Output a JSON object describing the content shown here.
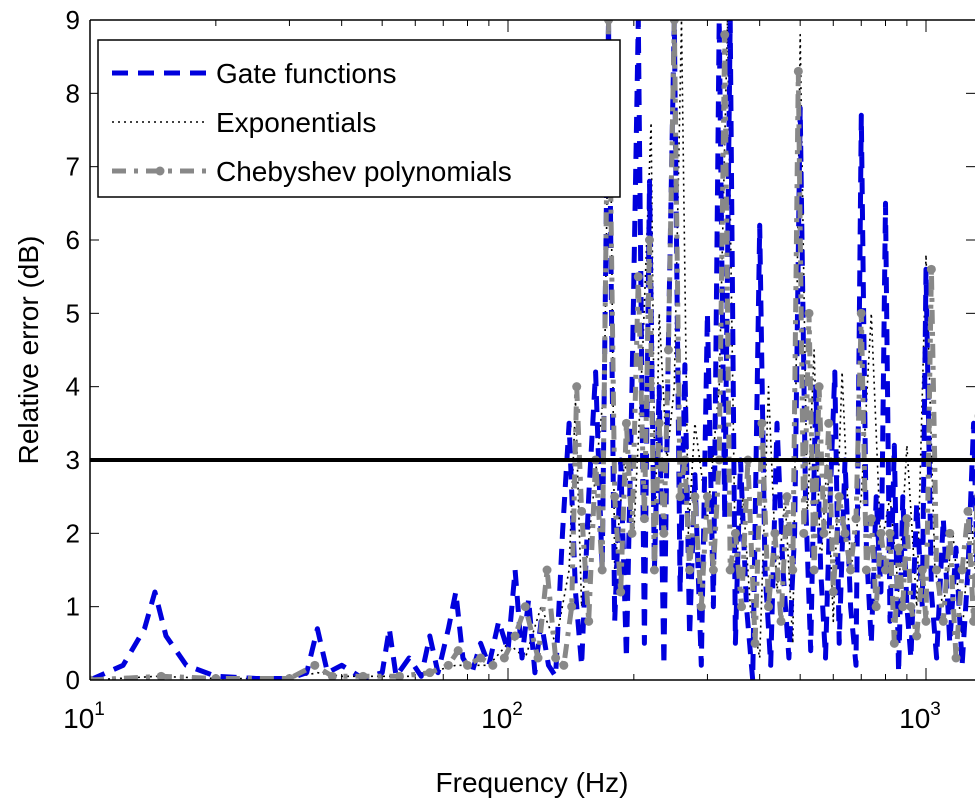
{
  "chart_data": {
    "type": "line",
    "title": "",
    "xlabel": "Frequency (Hz)",
    "ylabel": "Relative error (dB)",
    "xscale": "log",
    "xlim": [
      10,
      1500
    ],
    "ylim": [
      0,
      9
    ],
    "x_ticks": [
      {
        "value": 10,
        "base": "10",
        "exp": "1"
      },
      {
        "value": 100,
        "base": "10",
        "exp": "2"
      },
      {
        "value": 1000,
        "base": "10",
        "exp": "3"
      }
    ],
    "y_ticks": [
      "0",
      "1",
      "2",
      "3",
      "4",
      "5",
      "6",
      "7",
      "8",
      "9"
    ],
    "threshold": 3,
    "legend": {
      "position": "top-left",
      "entries": [
        "Gate functions",
        "Exponentials",
        "Chebyshev polynomials"
      ]
    },
    "series": [
      {
        "name": "Gate functions",
        "color": "#0000dd",
        "style": "dashed",
        "x": [
          10,
          12,
          13.5,
          14.3,
          15.2,
          17,
          20,
          25,
          30,
          33,
          35,
          37,
          40,
          45,
          50,
          52,
          54,
          58,
          62,
          65,
          68,
          72,
          75,
          78,
          82,
          86,
          90,
          95,
          100,
          104,
          108,
          112,
          116,
          120,
          125,
          130,
          135,
          140,
          145,
          150,
          156,
          162,
          168,
          174,
          180,
          186,
          192,
          198,
          205,
          212,
          218,
          224,
          230,
          236,
          242,
          250,
          258,
          265,
          272,
          280,
          290,
          300,
          310,
          320,
          330,
          340,
          350,
          360,
          372,
          385,
          400,
          412,
          425,
          440,
          455,
          470,
          485,
          500,
          515,
          530,
          545,
          560,
          575,
          590,
          605,
          620,
          640,
          660,
          680,
          700,
          720,
          740,
          760,
          780,
          800,
          820,
          840,
          860,
          880,
          900,
          920,
          950,
          980,
          1000,
          1030,
          1060,
          1100,
          1140,
          1180,
          1220,
          1260,
          1300,
          1340,
          1380,
          1420,
          1460,
          1500
        ],
        "y": [
          0.0,
          0.2,
          0.7,
          1.2,
          0.6,
          0.2,
          0.05,
          0.02,
          0.02,
          0.1,
          0.7,
          0.1,
          0.2,
          0.02,
          0.1,
          0.7,
          0.05,
          0.3,
          0.05,
          0.6,
          0.1,
          0.7,
          1.2,
          0.3,
          0.1,
          0.5,
          0.2,
          0.8,
          0.4,
          1.5,
          0.3,
          1.1,
          0.1,
          0.8,
          0.2,
          0.05,
          2.0,
          3.5,
          1.2,
          0.2,
          2.5,
          4.2,
          1.5,
          9.0,
          0.8,
          3.0,
          0.3,
          4.0,
          9.0,
          0.5,
          6.8,
          1.5,
          4.0,
          0.2,
          4.6,
          9.0,
          1.2,
          4.3,
          0.6,
          2.8,
          0.2,
          5.0,
          1.0,
          9.0,
          2.2,
          9.0,
          0.5,
          3.0,
          1.0,
          0.0,
          6.2,
          1.5,
          0.2,
          3.5,
          1.5,
          0.3,
          2.0,
          7.8,
          2.5,
          0.4,
          4.0,
          1.5,
          0.3,
          2.5,
          4.2,
          0.5,
          3.0,
          1.0,
          0.2,
          7.7,
          1.8,
          0.5,
          2.5,
          1.2,
          6.5,
          0.8,
          3.2,
          0.1,
          2.5,
          1.0,
          0.3,
          2.4,
          1.0,
          5.6,
          1.2,
          0.3,
          2.2,
          0.5,
          1.8,
          0.2,
          1.5,
          3.5,
          0.4,
          2.0,
          0.8,
          1.3,
          2.0
        ]
      },
      {
        "name": "Exponentials",
        "color": "#000000",
        "style": "dotted",
        "x": [
          10,
          14.5,
          20,
          30,
          35,
          40,
          50,
          60,
          75,
          90,
          100,
          110,
          120,
          130,
          140,
          145,
          150,
          160,
          170,
          175,
          180,
          190,
          200,
          210,
          220,
          225,
          230,
          240,
          250,
          260,
          270,
          280,
          300,
          320,
          335,
          350,
          365,
          380,
          400,
          420,
          440,
          460,
          480,
          500,
          520,
          540,
          560,
          580,
          600,
          630,
          660,
          700,
          740,
          780,
          820,
          860,
          900,
          950,
          1000,
          1050,
          1100,
          1160,
          1220,
          1280,
          1340,
          1400,
          1460,
          1500
        ],
        "y": [
          0.0,
          0.05,
          0.02,
          0.02,
          0.1,
          0.05,
          0.05,
          0.05,
          0.2,
          0.2,
          0.5,
          0.3,
          1.0,
          0.5,
          1.5,
          3.8,
          1.0,
          2.5,
          4.0,
          9.0,
          1.5,
          3.0,
          2.0,
          4.5,
          7.6,
          2.0,
          5.0,
          3.0,
          4.0,
          9.0,
          2.0,
          3.5,
          2.2,
          4.0,
          9.0,
          1.5,
          2.5,
          1.0,
          0.3,
          4.0,
          1.2,
          2.5,
          0.5,
          8.8,
          2.2,
          4.5,
          1.5,
          3.0,
          0.8,
          4.2,
          1.5,
          2.5,
          5.0,
          1.8,
          2.5,
          1.2,
          3.2,
          1.0,
          5.8,
          1.5,
          1.0,
          2.0,
          0.6,
          2.3,
          0.8,
          3.5,
          1.3,
          1.0
        ]
      },
      {
        "name": "Chebyshev polynomials",
        "color": "#888888",
        "style": "dash-dot-marker",
        "x": [
          10,
          14.8,
          20,
          30,
          34.5,
          38,
          45,
          55,
          65,
          72,
          76,
          80,
          86,
          92,
          98,
          104,
          110,
          118,
          124,
          130,
          136,
          142,
          146,
          150,
          156,
          162,
          168,
          174,
          180,
          186,
          192,
          198,
          205,
          212,
          218,
          224,
          230,
          236,
          242,
          250,
          258,
          265,
          272,
          280,
          290,
          300,
          310,
          320,
          330,
          340,
          350,
          362,
          375,
          390,
          405,
          420,
          435,
          450,
          465,
          480,
          495,
          510,
          525,
          540,
          555,
          570,
          585,
          600,
          620,
          640,
          660,
          680,
          700,
          720,
          740,
          760,
          780,
          800,
          820,
          840,
          860,
          880,
          900,
          920,
          950,
          980,
          1000,
          1030,
          1060,
          1100,
          1140,
          1180,
          1220,
          1260,
          1300,
          1340,
          1380,
          1420,
          1460,
          1500
        ],
        "y": [
          0.0,
          0.05,
          0.02,
          0.02,
          0.2,
          0.05,
          0.05,
          0.05,
          0.1,
          0.2,
          0.4,
          0.2,
          0.3,
          0.2,
          0.3,
          0.6,
          1.0,
          0.3,
          1.5,
          0.3,
          0.2,
          1.0,
          4.0,
          2.3,
          0.8,
          3.0,
          1.5,
          9.0,
          2.5,
          1.2,
          3.5,
          2.0,
          5.5,
          2.2,
          6.0,
          1.5,
          3.5,
          2.0,
          4.5,
          9.0,
          2.5,
          3.0,
          1.5,
          2.5,
          1.0,
          2.5,
          1.5,
          3.0,
          8.8,
          1.5,
          2.0,
          1.0,
          3.0,
          0.5,
          3.5,
          1.0,
          2.0,
          0.8,
          2.5,
          1.5,
          8.3,
          2.0,
          5.0,
          1.5,
          4.0,
          2.0,
          3.5,
          1.2,
          2.5,
          2.0,
          1.5,
          2.2,
          5.0,
          1.5,
          2.2,
          1.0,
          2.0,
          1.5,
          2.0,
          0.5,
          1.8,
          1.0,
          2.2,
          1.0,
          0.6,
          1.5,
          0.8,
          5.6,
          1.5,
          0.8,
          2.0,
          0.3,
          1.5,
          2.3,
          0.8,
          3.6,
          1.0,
          0.5,
          1.8,
          1.2
        ]
      }
    ]
  }
}
